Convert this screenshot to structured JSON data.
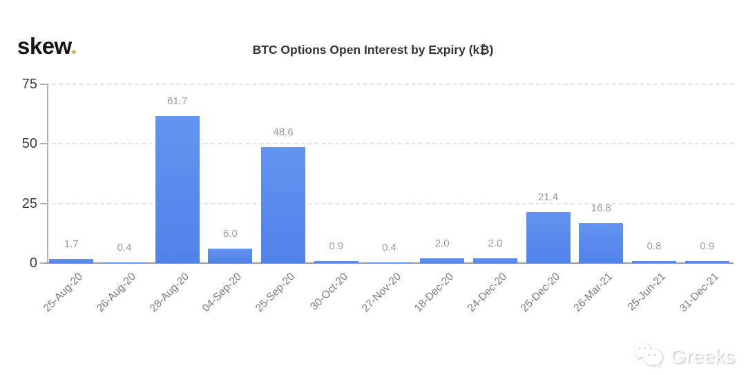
{
  "branding": {
    "logo_text": "skew",
    "logo_dot": ".",
    "accent_color": "#eba24b"
  },
  "chart_data": {
    "type": "bar",
    "title": "BTC Options Open Interest by Expiry (k₿)",
    "categories": [
      "25-Aug-20",
      "26-Aug-20",
      "28-Aug-20",
      "04-Sep-20",
      "25-Sep-20",
      "30-Oct-20",
      "27-Nov-20",
      "18-Dec-20",
      "24-Dec-20",
      "25-Dec-20",
      "26-Mar-21",
      "25-Jun-21",
      "31-Dec-21"
    ],
    "values": [
      1.7,
      0.4,
      61.7,
      6.0,
      48.6,
      0.9,
      0.4,
      2.0,
      2.0,
      21.4,
      16.8,
      0.8,
      0.9
    ],
    "value_labels": [
      "1.7",
      "0.4",
      "61.7",
      "6.0",
      "48.6",
      "0.9",
      "0.4",
      "2.0",
      "2.0",
      "21.4",
      "16.8",
      "0.8",
      "0.9"
    ],
    "xlabel": "",
    "ylabel": "",
    "ylim": [
      0,
      75
    ],
    "yticks": [
      0,
      25,
      50,
      75
    ],
    "grid": "horizontal-dashed",
    "legend_position": "none",
    "bar_color": "#5b8dee",
    "value_label_color": "#9d9d9d",
    "axis_label_color": "#7a7a7a"
  },
  "watermark": {
    "text": "Greeks",
    "icon": "wechat-icon"
  }
}
